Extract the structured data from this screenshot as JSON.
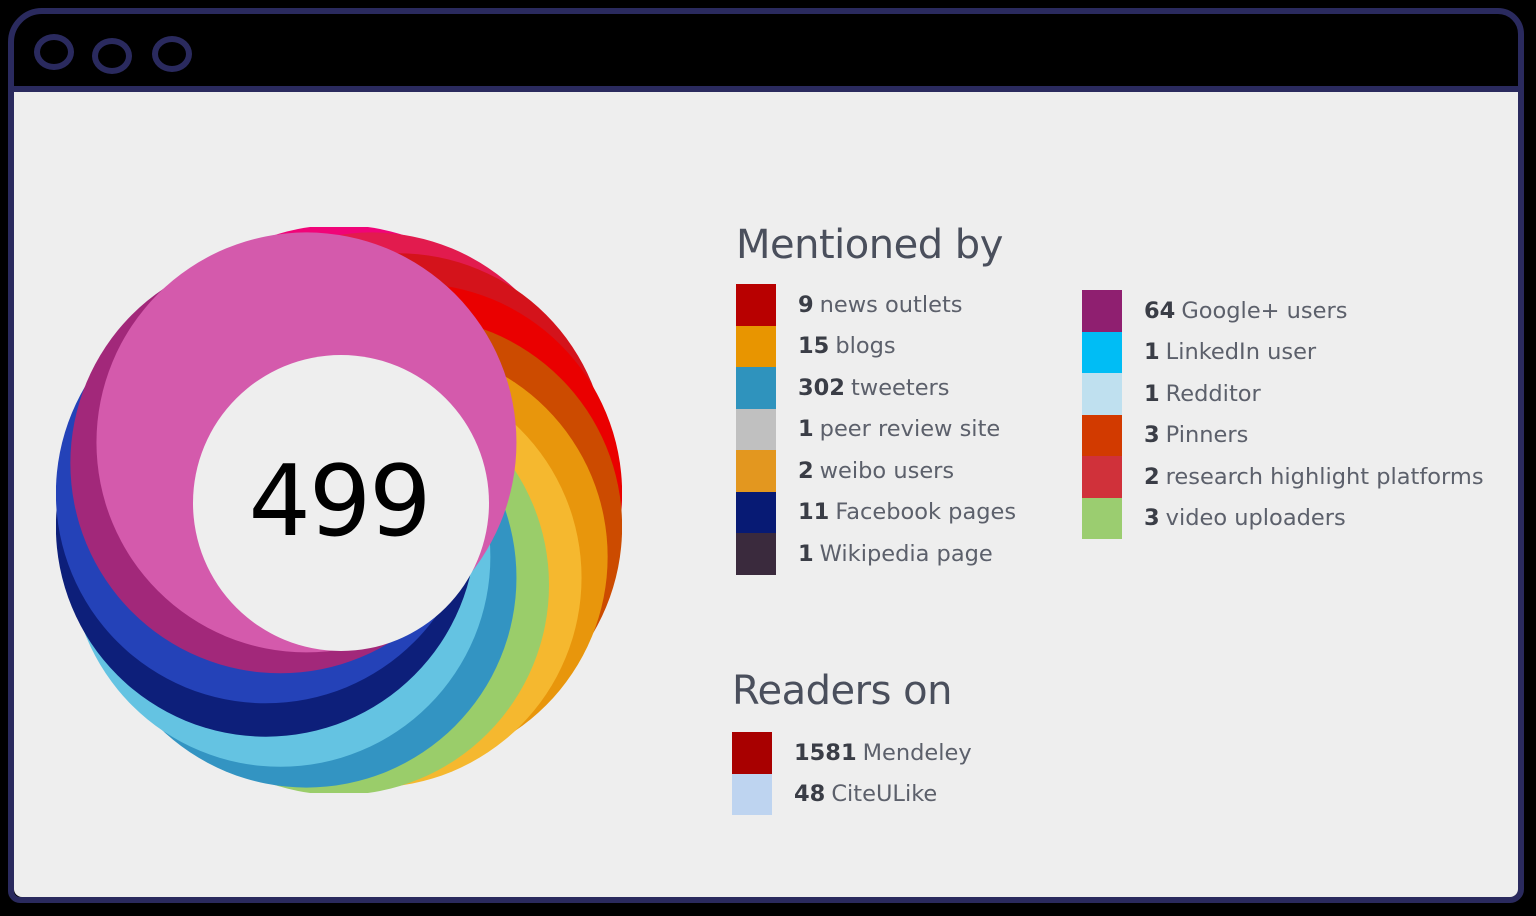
{
  "window": {
    "controls": [
      "circle-1",
      "circle-2",
      "circle-3"
    ]
  },
  "badge": {
    "score": "499",
    "ring_colors": [
      "#f00478",
      "#e21b4e",
      "#d4131b",
      "#ea0000",
      "#cc4b00",
      "#e8960c",
      "#f5b82f",
      "#9acd6a",
      "#3394c2",
      "#64c3e2",
      "#0d1f7a",
      "#2442b8",
      "#a2287a",
      "#d45aac"
    ]
  },
  "mentioned_by": {
    "title": "Mentioned by",
    "column_1": [
      {
        "count": "9",
        "label": "news outlets",
        "color": "#b80000"
      },
      {
        "count": "15",
        "label": "blogs",
        "color": "#e89500"
      },
      {
        "count": "302",
        "label": "tweeters",
        "color": "#2f93bd"
      },
      {
        "count": "1",
        "label": "peer review site",
        "color": "#c0c0c0"
      },
      {
        "count": "2",
        "label": "weibo users",
        "color": "#e3971f"
      },
      {
        "count": "11",
        "label": "Facebook pages",
        "color": "#071a74"
      },
      {
        "count": "1",
        "label": "Wikipedia page",
        "color": "#3a2a3d"
      }
    ],
    "column_2": [
      {
        "count": "64",
        "label": "Google+ users",
        "color": "#8f1f70"
      },
      {
        "count": "1",
        "label": "LinkedIn user",
        "color": "#00bdf5"
      },
      {
        "count": "1",
        "label": "Redditor",
        "color": "#bfe0ef"
      },
      {
        "count": "3",
        "label": "Pinners",
        "color": "#d23a00"
      },
      {
        "count": "2",
        "label": "research highlight platforms",
        "color": "#d0313a"
      },
      {
        "count": "3",
        "label": "video uploaders",
        "color": "#9bcd70"
      }
    ]
  },
  "readers_on": {
    "title": "Readers on",
    "items": [
      {
        "count": "1581",
        "label": "Mendeley",
        "color": "#a80000"
      },
      {
        "count": "48",
        "label": "CiteULike",
        "color": "#bed4f0"
      }
    ]
  }
}
